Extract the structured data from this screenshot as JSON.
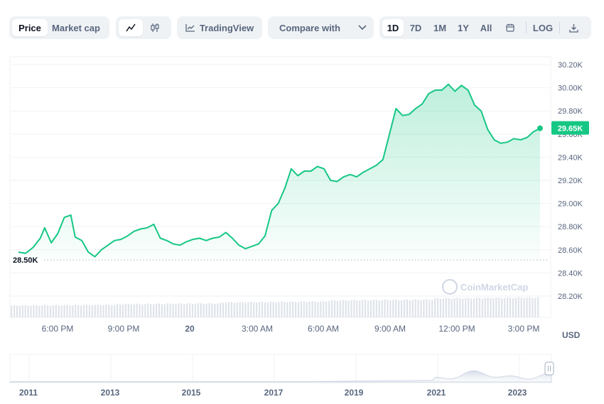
{
  "toolbar": {
    "price_label": "Price",
    "market_cap_label": "Market cap",
    "line_icon": "line-chart-icon",
    "candle_icon": "candlestick-icon",
    "tradingview_label": "TradingView",
    "compare_label": "Compare with",
    "ranges": [
      "1D",
      "7D",
      "1M",
      "1Y",
      "All"
    ],
    "active_range": "1D",
    "calendar_icon": "calendar-icon",
    "log_label": "LOG",
    "download_icon": "download-icon"
  },
  "colors": {
    "line": "#16c784",
    "fill_top": "#16c784",
    "grid": "#eff2f5",
    "axis_text": "#58667e",
    "current_badge": "#16c784"
  },
  "watermark": "CoinMarketCap",
  "chart_data": {
    "type": "area",
    "x_ticks": [
      "6:00 PM",
      "9:00 PM",
      "20",
      "3:00 AM",
      "6:00 AM",
      "9:00 AM",
      "12:00 PM",
      "3:00 PM"
    ],
    "y_ticks": [
      "30.20K",
      "30.00K",
      "29.80K",
      "29.60K",
      "29.40K",
      "29.20K",
      "29.00K",
      "28.80K",
      "28.60K",
      "28.40K",
      "28.20K"
    ],
    "y_tick_values": [
      30200,
      30000,
      29800,
      29600,
      29400,
      29200,
      29000,
      28800,
      28600,
      28400,
      28200
    ],
    "ylim": [
      28100,
      30300
    ],
    "currency_label": "USD",
    "open_reference_label": "28.50K",
    "open_reference_value": 28500,
    "current_label": "29.65K",
    "current_value": 29650,
    "x_hours": [
      0,
      0.33,
      0.67,
      1,
      1.2,
      1.5,
      1.8,
      2.1,
      2.4,
      2.6,
      2.9,
      3.2,
      3.5,
      3.8,
      4.1,
      4.4,
      4.7,
      5.0,
      5.3,
      5.6,
      5.9,
      6.2,
      6.5,
      6.8,
      7.1,
      7.4,
      7.7,
      8.0,
      8.3,
      8.6,
      8.9,
      9.2,
      9.5,
      9.8,
      10.1,
      10.4,
      10.7,
      11.0,
      11.3,
      11.6,
      11.9,
      12.2,
      12.5,
      12.8,
      13.1,
      13.4,
      13.7,
      14.0,
      14.3,
      14.6,
      14.9,
      15.2,
      15.5,
      15.8,
      16.1,
      16.4,
      16.7,
      17.0,
      17.3,
      17.6,
      17.9,
      18.2,
      18.5,
      18.8,
      19.1,
      19.4,
      19.7,
      20.0,
      20.3,
      20.6,
      20.9,
      21.2,
      21.5,
      21.8,
      22.1,
      22.4,
      22.7,
      23.0,
      23.3,
      23.6,
      23.9
    ],
    "values": [
      28580,
      28570,
      28620,
      28700,
      28790,
      28660,
      28740,
      28880,
      28900,
      28710,
      28680,
      28580,
      28540,
      28600,
      28640,
      28680,
      28690,
      28720,
      28760,
      28780,
      28790,
      28820,
      28700,
      28680,
      28650,
      28640,
      28670,
      28690,
      28700,
      28680,
      28700,
      28710,
      28750,
      28700,
      28640,
      28610,
      28630,
      28650,
      28720,
      28940,
      29000,
      29130,
      29300,
      29240,
      29280,
      29280,
      29320,
      29300,
      29200,
      29190,
      29230,
      29250,
      29230,
      29270,
      29300,
      29330,
      29380,
      29600,
      29820,
      29760,
      29770,
      29820,
      29860,
      29950,
      29980,
      29980,
      30030,
      29970,
      30020,
      29980,
      29850,
      29800,
      29640,
      29550,
      29520,
      29530,
      29560,
      29550,
      29570,
      29620,
      29650
    ],
    "volume_base": [
      0.55,
      0.58,
      0.62,
      0.66,
      0.7
    ],
    "navigator_x_ticks": [
      "2011",
      "2013",
      "2015",
      "2017",
      "2019",
      "2021",
      "2023"
    ],
    "grid": true
  }
}
